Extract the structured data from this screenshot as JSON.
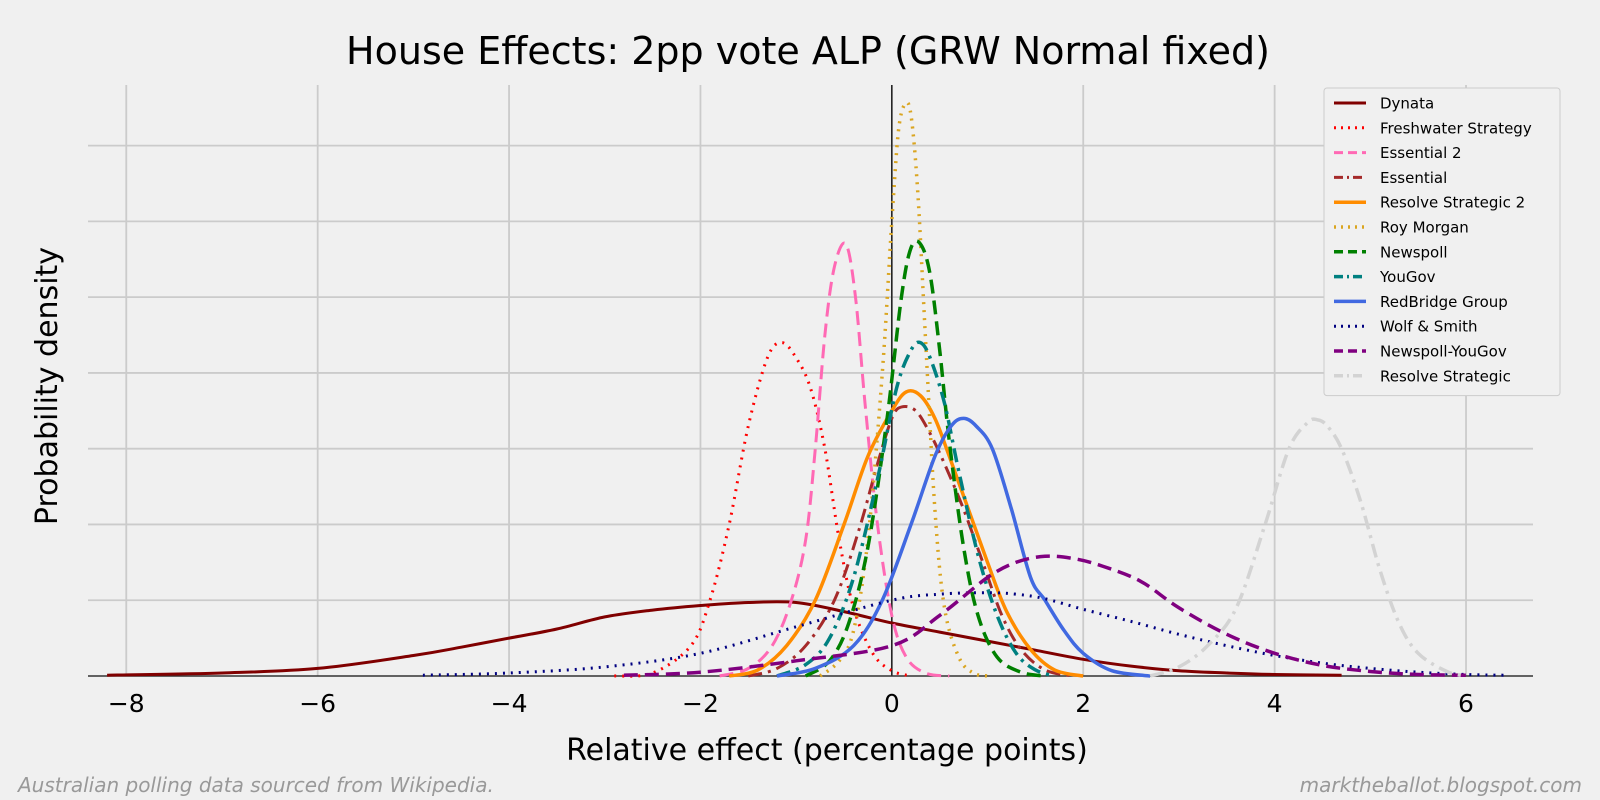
{
  "footer": {
    "left": "Australian polling data sourced from Wikipedia.",
    "right": "marktheballot.blogspot.com"
  },
  "colors": {
    "background": "#f0f0f0",
    "grid": "#cbcbcb"
  },
  "chart_data": {
    "type": "line",
    "title": "House Effects: 2pp vote ALP (GRW Normal fixed)",
    "xlabel": "Relative effect (percentage points)",
    "ylabel": "Probability density",
    "xlim": [
      -8.4,
      6.7
    ],
    "ylim": [
      0,
      0.78
    ],
    "xticks": [
      -8,
      -6,
      -4,
      -2,
      0,
      2,
      4,
      6
    ],
    "xtick_labels": [
      "−8",
      "−6",
      "−4",
      "−2",
      "0",
      "2",
      "4",
      "6"
    ],
    "y_gridlines": [
      0.1,
      0.2,
      0.3,
      0.4,
      0.5,
      0.6,
      0.7
    ],
    "y_tick_labels": "hidden",
    "vertical_reference_line": 0,
    "grid": true,
    "legend_position": "top-right",
    "series": [
      {
        "name": "Dynata",
        "color": "#800000",
        "dash": "solid",
        "width": 3,
        "x": [
          -8.2,
          -7.0,
          -6.0,
          -5.0,
          -4.5,
          -4.0,
          -3.5,
          -3.0,
          -2.5,
          -2.0,
          -1.5,
          -1.0,
          -0.5,
          0.0,
          0.5,
          1.0,
          1.5,
          2.0,
          2.5,
          3.0,
          3.5,
          4.0,
          4.7
        ],
        "y": [
          0.001,
          0.004,
          0.01,
          0.027,
          0.038,
          0.05,
          0.062,
          0.078,
          0.087,
          0.093,
          0.097,
          0.097,
          0.085,
          0.07,
          0.058,
          0.046,
          0.034,
          0.022,
          0.013,
          0.007,
          0.004,
          0.002,
          0.001
        ]
      },
      {
        "name": "Freshwater Strategy",
        "color": "#ff0000",
        "dash": "dotted",
        "width": 3,
        "x": [
          -2.9,
          -2.5,
          -2.1,
          -1.9,
          -1.7,
          -1.5,
          -1.3,
          -1.15,
          -1.0,
          -0.85,
          -0.7,
          -0.55,
          -0.4,
          -0.2,
          0.0,
          0.2
        ],
        "y": [
          0.0,
          0.004,
          0.04,
          0.1,
          0.2,
          0.33,
          0.42,
          0.44,
          0.42,
          0.38,
          0.3,
          0.18,
          0.09,
          0.03,
          0.007,
          0.0
        ]
      },
      {
        "name": "Essential 2",
        "color": "#ff69b4",
        "dash": "dashed",
        "width": 3,
        "x": [
          -1.8,
          -1.5,
          -1.25,
          -1.05,
          -0.9,
          -0.8,
          -0.7,
          -0.6,
          -0.48,
          -0.38,
          -0.28,
          -0.15,
          0.0,
          0.15,
          0.35,
          0.6
        ],
        "y": [
          0.0,
          0.01,
          0.04,
          0.1,
          0.18,
          0.3,
          0.45,
          0.54,
          0.57,
          0.5,
          0.36,
          0.2,
          0.08,
          0.025,
          0.004,
          0.0
        ]
      },
      {
        "name": "Essential",
        "color": "#a52a2a",
        "dash": "dashdot",
        "width": 3,
        "x": [
          -1.5,
          -1.2,
          -0.9,
          -0.6,
          -0.35,
          -0.15,
          0.0,
          0.1,
          0.25,
          0.4,
          0.55,
          0.75,
          0.95,
          1.15,
          1.35,
          1.6,
          1.9
        ],
        "y": [
          0.0,
          0.01,
          0.04,
          0.1,
          0.19,
          0.28,
          0.34,
          0.355,
          0.35,
          0.32,
          0.28,
          0.22,
          0.15,
          0.08,
          0.035,
          0.008,
          0.0
        ]
      },
      {
        "name": "Resolve Strategic 2",
        "color": "#ff8c00",
        "dash": "solid",
        "width": 3.5,
        "x": [
          -1.7,
          -1.4,
          -1.1,
          -0.8,
          -0.5,
          -0.25,
          0.0,
          0.15,
          0.3,
          0.45,
          0.6,
          0.8,
          1.0,
          1.2,
          1.45,
          1.7,
          2.0
        ],
        "y": [
          0.0,
          0.008,
          0.04,
          0.1,
          0.2,
          0.29,
          0.35,
          0.375,
          0.37,
          0.34,
          0.29,
          0.22,
          0.15,
          0.085,
          0.035,
          0.008,
          0.0
        ]
      },
      {
        "name": "Roy Morgan",
        "color": "#daa520",
        "dash": "dotted",
        "width": 3.5,
        "x": [
          -0.75,
          -0.55,
          -0.4,
          -0.25,
          -0.1,
          0.0,
          0.07,
          0.14,
          0.2,
          0.27,
          0.35,
          0.45,
          0.55,
          0.7,
          0.85,
          1.0
        ],
        "y": [
          0.0,
          0.02,
          0.06,
          0.18,
          0.4,
          0.6,
          0.72,
          0.755,
          0.74,
          0.64,
          0.45,
          0.22,
          0.09,
          0.025,
          0.004,
          0.0
        ]
      },
      {
        "name": "Newspoll",
        "color": "#008000",
        "dash": "dashed",
        "width": 3.5,
        "x": [
          -0.9,
          -0.65,
          -0.45,
          -0.25,
          -0.05,
          0.1,
          0.2,
          0.3,
          0.4,
          0.5,
          0.6,
          0.75,
          0.9,
          1.1,
          1.35,
          1.6
        ],
        "y": [
          0.0,
          0.02,
          0.07,
          0.17,
          0.34,
          0.5,
          0.565,
          0.57,
          0.53,
          0.43,
          0.31,
          0.17,
          0.08,
          0.025,
          0.005,
          0.0
        ]
      },
      {
        "name": "YouGov",
        "color": "#008080",
        "dash": "dashdot",
        "width": 3.5,
        "x": [
          -1.2,
          -0.9,
          -0.65,
          -0.4,
          -0.15,
          0.05,
          0.2,
          0.3,
          0.4,
          0.55,
          0.7,
          0.9,
          1.1,
          1.3,
          1.5,
          1.7
        ],
        "y": [
          0.0,
          0.015,
          0.05,
          0.13,
          0.26,
          0.38,
          0.43,
          0.44,
          0.42,
          0.36,
          0.27,
          0.16,
          0.08,
          0.03,
          0.008,
          0.0
        ]
      },
      {
        "name": "RedBridge Group",
        "color": "#4169e1",
        "dash": "solid",
        "width": 3.5,
        "x": [
          -1.2,
          -0.8,
          -0.4,
          -0.1,
          0.2,
          0.45,
          0.62,
          0.75,
          0.88,
          1.05,
          1.25,
          1.45,
          1.6,
          1.8,
          2.0,
          2.3,
          2.7
        ],
        "y": [
          0.0,
          0.01,
          0.04,
          0.1,
          0.2,
          0.29,
          0.33,
          0.34,
          0.33,
          0.3,
          0.22,
          0.13,
          0.1,
          0.06,
          0.03,
          0.007,
          0.0
        ]
      },
      {
        "name": "Wolf & Smith",
        "color": "#000080",
        "dash": "dotted",
        "width": 3,
        "x": [
          -4.9,
          -4.0,
          -3.0,
          -2.0,
          -1.0,
          0.0,
          0.5,
          1.0,
          1.3,
          1.6,
          2.0,
          2.5,
          3.0,
          3.5,
          4.0,
          4.5,
          5.0,
          5.5,
          6.0,
          6.4
        ],
        "y": [
          0.001,
          0.004,
          0.012,
          0.03,
          0.065,
          0.1,
          0.108,
          0.11,
          0.108,
          0.102,
          0.088,
          0.072,
          0.055,
          0.04,
          0.027,
          0.017,
          0.01,
          0.005,
          0.002,
          0.001
        ]
      },
      {
        "name": "Newspoll-YouGov",
        "color": "#800080",
        "dash": "dashed",
        "width": 3.5,
        "x": [
          -2.8,
          -2.0,
          -1.0,
          0.0,
          0.5,
          1.0,
          1.3,
          1.6,
          1.9,
          2.2,
          2.6,
          3.0,
          3.5,
          4.0,
          4.5,
          5.0,
          5.5,
          6.0
        ],
        "y": [
          0.001,
          0.005,
          0.02,
          0.04,
          0.08,
          0.13,
          0.15,
          0.158,
          0.155,
          0.145,
          0.125,
          0.09,
          0.055,
          0.03,
          0.014,
          0.006,
          0.002,
          0.001
        ]
      },
      {
        "name": "Resolve Strategic",
        "color": "#d3d3d3",
        "dash": "dashdot",
        "width": 3.5,
        "x": [
          2.7,
          3.0,
          3.3,
          3.6,
          3.9,
          4.15,
          4.35,
          4.45,
          4.55,
          4.7,
          4.9,
          5.1,
          5.3,
          5.5,
          5.8,
          6.0
        ],
        "y": [
          0.0,
          0.012,
          0.04,
          0.09,
          0.2,
          0.3,
          0.335,
          0.338,
          0.33,
          0.3,
          0.23,
          0.14,
          0.07,
          0.03,
          0.006,
          0.0
        ]
      }
    ]
  }
}
